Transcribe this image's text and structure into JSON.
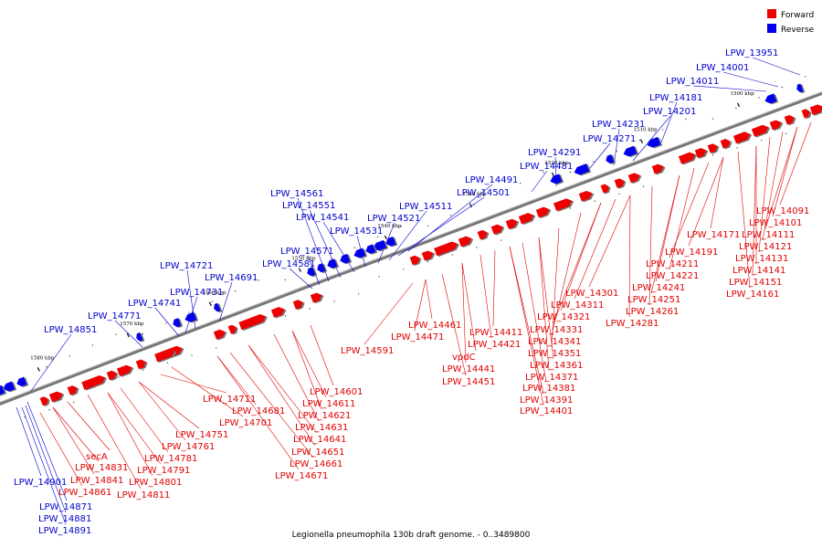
{
  "legend": {
    "forward_label": "Forward",
    "reverse_label": "Reverse",
    "forward_color": "#ee0000",
    "reverse_color": "#0000ee"
  },
  "caption": "Legionella pneumophila 130b draft genome. - 0..3489800",
  "ticks": [
    "1500 kbp",
    "1510 kbp",
    "1520 kbp",
    "1530 kbp",
    "1540 kbp",
    "1550 kbp",
    "1560 kbp",
    "1570 kbp",
    "1580 kbp"
  ],
  "forward_genes": [
    "LPW_14091",
    "LPW_14101",
    "LPW_14111",
    "LPW_14121",
    "LPW_14131",
    "LPW_14141",
    "LPW_14151",
    "LPW_14161",
    "LPW_14171",
    "LPW_14191",
    "LPW_14211",
    "LPW_14221",
    "LPW_14241",
    "LPW_14251",
    "LPW_14261",
    "LPW_14281",
    "LPW_14301",
    "LPW_14311",
    "LPW_14321",
    "LPW_14331",
    "LPW_14341",
    "LPW_14351",
    "LPW_14361",
    "LPW_14371",
    "LPW_14381",
    "LPW_14391",
    "LPW_14401",
    "LPW_14411",
    "LPW_14421",
    "vpdC",
    "LPW_14441",
    "LPW_14451",
    "LPW_14461",
    "LPW_14471",
    "LPW_14591",
    "LPW_14601",
    "LPW_14611",
    "LPW_14621",
    "LPW_14631",
    "LPW_14641",
    "LPW_14651",
    "LPW_14661",
    "LPW_14671",
    "LPW_14681",
    "LPW_14701",
    "LPW_14711",
    "LPW_14751",
    "LPW_14761",
    "LPW_14781",
    "LPW_14791",
    "LPW_14801",
    "LPW_14811",
    "secA",
    "LPW_14831",
    "LPW_14841",
    "LPW_14861"
  ],
  "reverse_genes": [
    "LPW_13951",
    "LPW_14001",
    "LPW_14011",
    "LPW_14181",
    "LPW_14201",
    "LPW_14231",
    "LPW_14271",
    "LPW_14291",
    "LPW_14481",
    "LPW_14491",
    "LPW_14501",
    "LPW_14511",
    "LPW_14521",
    "LPW_14531",
    "LPW_14541",
    "LPW_14551",
    "LPW_14561",
    "LPW_14571",
    "LPW_14581",
    "LPW_14691",
    "LPW_14721",
    "LPW_14731",
    "LPW_14741",
    "LPW_14771",
    "LPW_14851",
    "LPW_14871",
    "LPW_14881",
    "LPW_14891",
    "LPW_14901"
  ]
}
